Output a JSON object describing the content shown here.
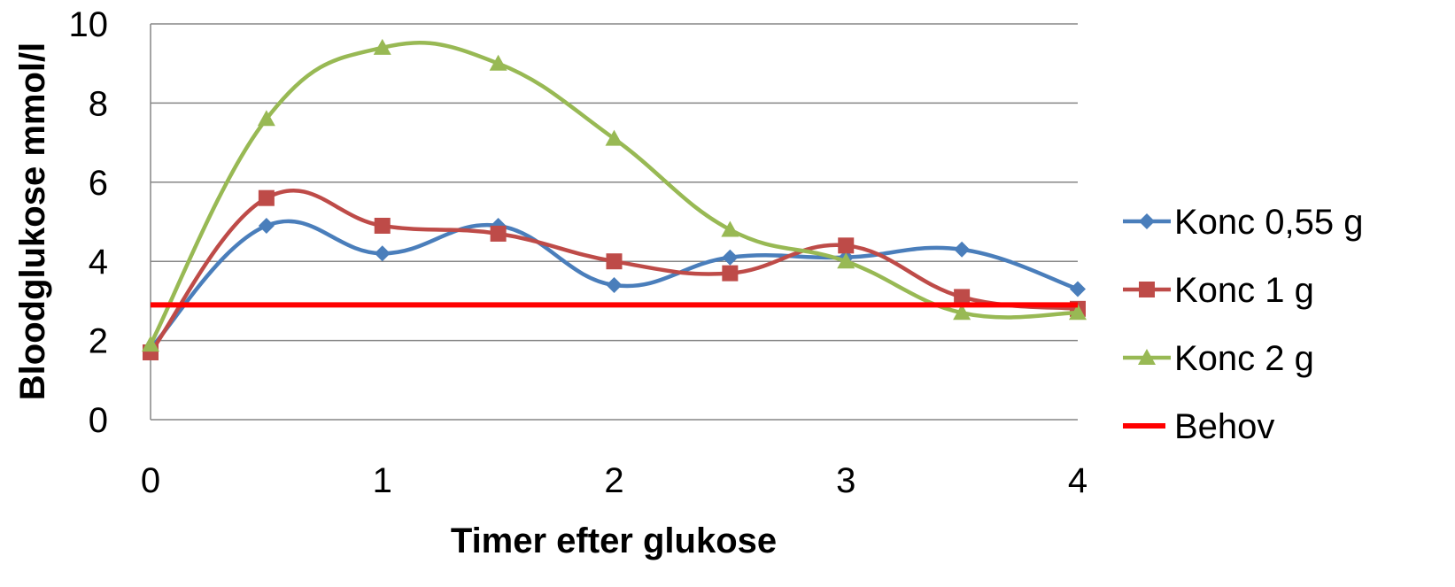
{
  "chart_data": {
    "type": "line",
    "smooth": true,
    "xlabel": "Timer efter glukose",
    "ylabel": "Bloodglukose mmol/l",
    "xlim": [
      0,
      4
    ],
    "ylim": [
      0,
      10
    ],
    "x_ticks": [
      "0",
      "1",
      "2",
      "3",
      "4"
    ],
    "y_ticks": [
      "0",
      "2",
      "4",
      "6",
      "8",
      "10"
    ],
    "grid": "horizontal",
    "legend_position": "right",
    "x": [
      0,
      0.5,
      1,
      1.5,
      2,
      2.5,
      3,
      3.5,
      4
    ],
    "series": [
      {
        "name": "Konc 0,55 g",
        "color": "#4a7ebb",
        "marker": "diamond",
        "values": [
          1.8,
          4.9,
          4.2,
          4.9,
          3.4,
          4.1,
          4.1,
          4.3,
          3.3
        ]
      },
      {
        "name": "Konc 1 g",
        "color": "#be4b48",
        "marker": "square",
        "values": [
          1.7,
          5.6,
          4.9,
          4.7,
          4.0,
          3.7,
          4.4,
          3.1,
          2.8
        ]
      },
      {
        "name": "Konc 2 g",
        "color": "#98b954",
        "marker": "triangle",
        "values": [
          1.9,
          7.6,
          9.4,
          9.0,
          7.1,
          4.8,
          4.0,
          2.7,
          2.7
        ]
      },
      {
        "name": "Behov",
        "color": "#ff0000",
        "marker": "none",
        "values": [
          2.9,
          2.9,
          2.9,
          2.9,
          2.9,
          2.9,
          2.9,
          2.9,
          2.9
        ]
      }
    ]
  }
}
